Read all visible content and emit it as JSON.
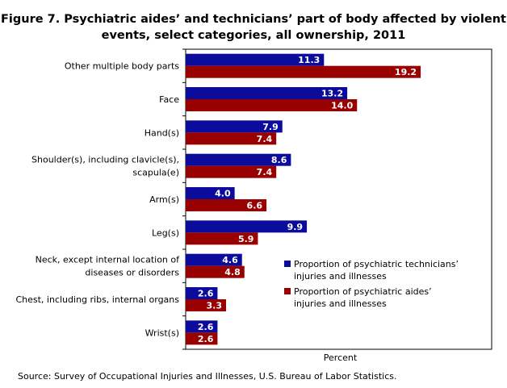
{
  "title_line1": "Figure 7. Psychiatric aides’ and technicians’ part of body affected by violent",
  "title_line2": "events, select categories, all ownership, 2011",
  "source": "Source:  Survey of Occupational  Injuries and Illnesses, U.S. Bureau  of Labor Statistics.",
  "chart_data": {
    "type": "bar",
    "orientation": "horizontal",
    "categories": [
      "Other multiple body parts",
      "Face",
      "Hand(s)",
      "Shoulder(s), including clavicle(s),|scapula(e)",
      "Arm(s)",
      "Leg(s)",
      "Neck, except internal location of|diseases or disorders",
      "Chest, including ribs, internal organs",
      "Wrist(s)"
    ],
    "series": [
      {
        "name": "Proportion  of psychiatric technicians’|injuries and illnesses",
        "color": "#0B0B9C",
        "values": [
          11.3,
          13.2,
          7.9,
          8.6,
          4.0,
          9.9,
          4.6,
          2.6,
          2.6
        ]
      },
      {
        "name": "Proportion  of psychiatric aides’|injuries and illnesses",
        "color": "#990000",
        "values": [
          19.2,
          14.0,
          7.4,
          7.4,
          6.6,
          5.9,
          4.8,
          3.3,
          2.6
        ]
      }
    ],
    "xlabel": "Percent",
    "xlim": [
      0,
      25
    ],
    "grid": false,
    "legend": "bottom-right inside plot"
  }
}
